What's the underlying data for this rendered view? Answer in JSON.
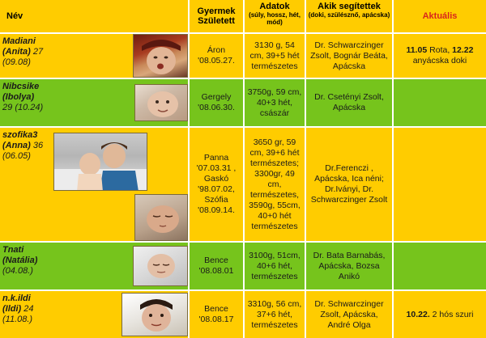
{
  "headers": {
    "nev": "Név",
    "gyermek": "Gyermek Született",
    "adatok": "Adatok",
    "adatok_sub": "(súly, hossz, hét, mód)",
    "akik": "Akik segítettek",
    "akik_sub": "(doki, szülésznő, apácska)",
    "aktualis": "Aktuális"
  },
  "rows": [
    {
      "nick": "Madiani",
      "real_name": "(Anita)",
      "age": "27",
      "due": "(09.08)",
      "child": "Áron '08.05.27.",
      "data": "3130 g, 54 cm, 39+5 hét természetes",
      "helpers": "Dr. Schwarczinger Zsolt, Bognár Beáta, Apácska",
      "current_date1": "11.05",
      "current_mid": " Rota, ",
      "current_date2": "12.22",
      "current_rest": " anyácska doki"
    },
    {
      "nick": "Nibcsike",
      "real_name": "(Ibolya)",
      "age": "29",
      "due": "(10.24)",
      "child": "Gergely '08.06.30.",
      "data": "3750g, 59 cm, 40+3 hét, császár",
      "helpers": "Dr. Csetényi Zsolt, Apácska"
    },
    {
      "nick": "szofika3",
      "real_name": "(Anna)",
      "age": "36",
      "due": "(06.05)",
      "child": "Panna '07.03.31 , Gaskó '98.07.02, Szófia '08.09.14.",
      "data": "3650 gr, 59 cm, 39+6 hét természetes; 3300gr, 49 cm, természetes, 3590g, 55cm, 40+0 hét természetes",
      "helpers": "Dr.Ferenczi , Apácska, Ica néni; Dr.Iványi, Dr. Schwarczinger Zsolt"
    },
    {
      "nick": "Tnati",
      "real_name": "(Natália)",
      "age": "",
      "due": "(04.08.)",
      "child": "Bence '08.08.01",
      "data": "3100g, 51cm, 40+6 hét, természetes",
      "helpers": "Dr. Bata Barnabás, Apácska, Bozsa Anikó"
    },
    {
      "nick": "n.k.ildi",
      "real_name": "(Ildi)",
      "age": "24",
      "due": "(11.08.)",
      "child": "Bence '08.08.17",
      "data": "3310g, 56 cm, 37+6 hét, természetes",
      "helpers": "Dr. Schwarczinger Zsolt, Apácska, André Olga",
      "current_date1": "10.22.",
      "current_rest": " 2 hós szuri"
    }
  ]
}
